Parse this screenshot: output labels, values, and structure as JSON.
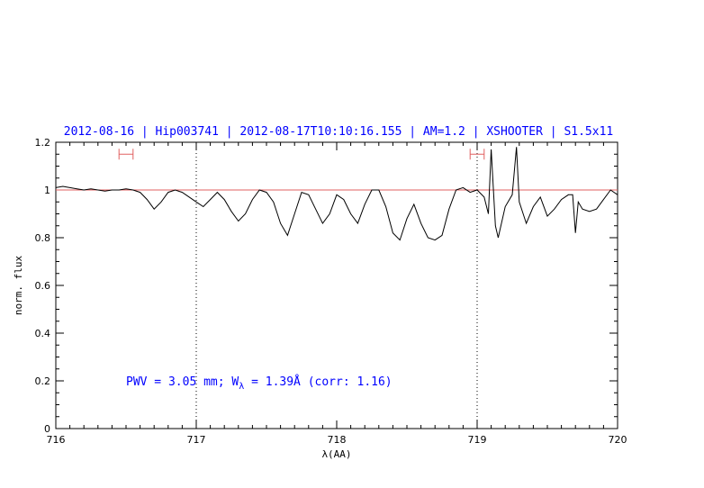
{
  "chart_data": {
    "type": "line",
    "title": "2012-08-16 | Hip003741 | 2012-08-17T10:10:16.155 | AM=1.2 | XSHOOTER | S1.5x11",
    "xlabel": "λ(AA)",
    "ylabel": "norm. flux",
    "xlim": [
      716,
      720
    ],
    "ylim": [
      0,
      1.2
    ],
    "x_ticks": [
      "716",
      "717",
      "718",
      "719",
      "720"
    ],
    "y_ticks": [
      "0",
      "0.2",
      "0.4",
      "0.6",
      "0.8",
      "1",
      "1.2"
    ],
    "reference_line": {
      "y": 1.0,
      "color": "#e06060"
    },
    "vertical_markers": [
      717.0,
      719.0
    ],
    "intervals": [
      {
        "x0": 716.45,
        "x1": 716.55,
        "y": 1.15
      },
      {
        "x0": 718.95,
        "x1": 719.05,
        "y": 1.15
      }
    ],
    "annotation": {
      "text_pre": "PWV = 3.05 mm; W",
      "subscript": "λ",
      "text_post": " = 1.39Å (corr: 1.16)"
    },
    "series": [
      {
        "color": "#000000",
        "x": [
          716.0,
          716.05,
          716.1,
          716.15,
          716.2,
          716.25,
          716.3,
          716.35,
          716.4,
          716.45,
          716.5,
          716.55,
          716.6,
          716.65,
          716.7,
          716.75,
          716.8,
          716.85,
          716.9,
          716.95,
          717.0,
          717.05,
          717.1,
          717.15,
          717.2,
          717.25,
          717.3,
          717.35,
          717.4,
          717.45,
          717.5,
          717.55,
          717.6,
          717.65,
          717.7,
          717.75,
          717.8,
          717.85,
          717.9,
          717.95,
          718.0,
          718.05,
          718.1,
          718.15,
          718.2,
          718.25,
          718.3,
          718.35,
          718.4,
          718.45,
          718.5,
          718.55,
          718.6,
          718.65,
          718.7,
          718.75,
          718.8,
          718.85,
          718.9,
          718.95,
          719.0,
          719.05,
          719.08,
          719.1,
          719.13,
          719.15,
          719.2,
          719.25,
          719.28,
          719.3,
          719.35,
          719.4,
          719.45,
          719.5,
          719.55,
          719.6,
          719.65,
          719.68,
          719.7,
          719.72,
          719.75,
          719.8,
          719.85,
          719.9,
          719.95,
          720.0
        ],
        "y": [
          1.01,
          1.015,
          1.01,
          1.005,
          1.0,
          1.005,
          1.0,
          0.995,
          1.0,
          1.0,
          1.005,
          1.0,
          0.99,
          0.96,
          0.92,
          0.95,
          0.99,
          1.0,
          0.99,
          0.97,
          0.95,
          0.93,
          0.96,
          0.99,
          0.96,
          0.91,
          0.87,
          0.9,
          0.96,
          1.0,
          0.99,
          0.95,
          0.86,
          0.81,
          0.9,
          0.99,
          0.98,
          0.92,
          0.86,
          0.9,
          0.98,
          0.96,
          0.9,
          0.86,
          0.94,
          1.0,
          1.0,
          0.93,
          0.82,
          0.79,
          0.88,
          0.94,
          0.86,
          0.8,
          0.79,
          0.81,
          0.92,
          1.0,
          1.01,
          0.99,
          1.0,
          0.97,
          0.9,
          1.17,
          0.85,
          0.8,
          0.93,
          0.98,
          1.18,
          0.95,
          0.86,
          0.93,
          0.97,
          0.89,
          0.92,
          0.96,
          0.98,
          0.98,
          0.82,
          0.95,
          0.92,
          0.91,
          0.92,
          0.96,
          1.0,
          0.98
        ]
      }
    ]
  }
}
